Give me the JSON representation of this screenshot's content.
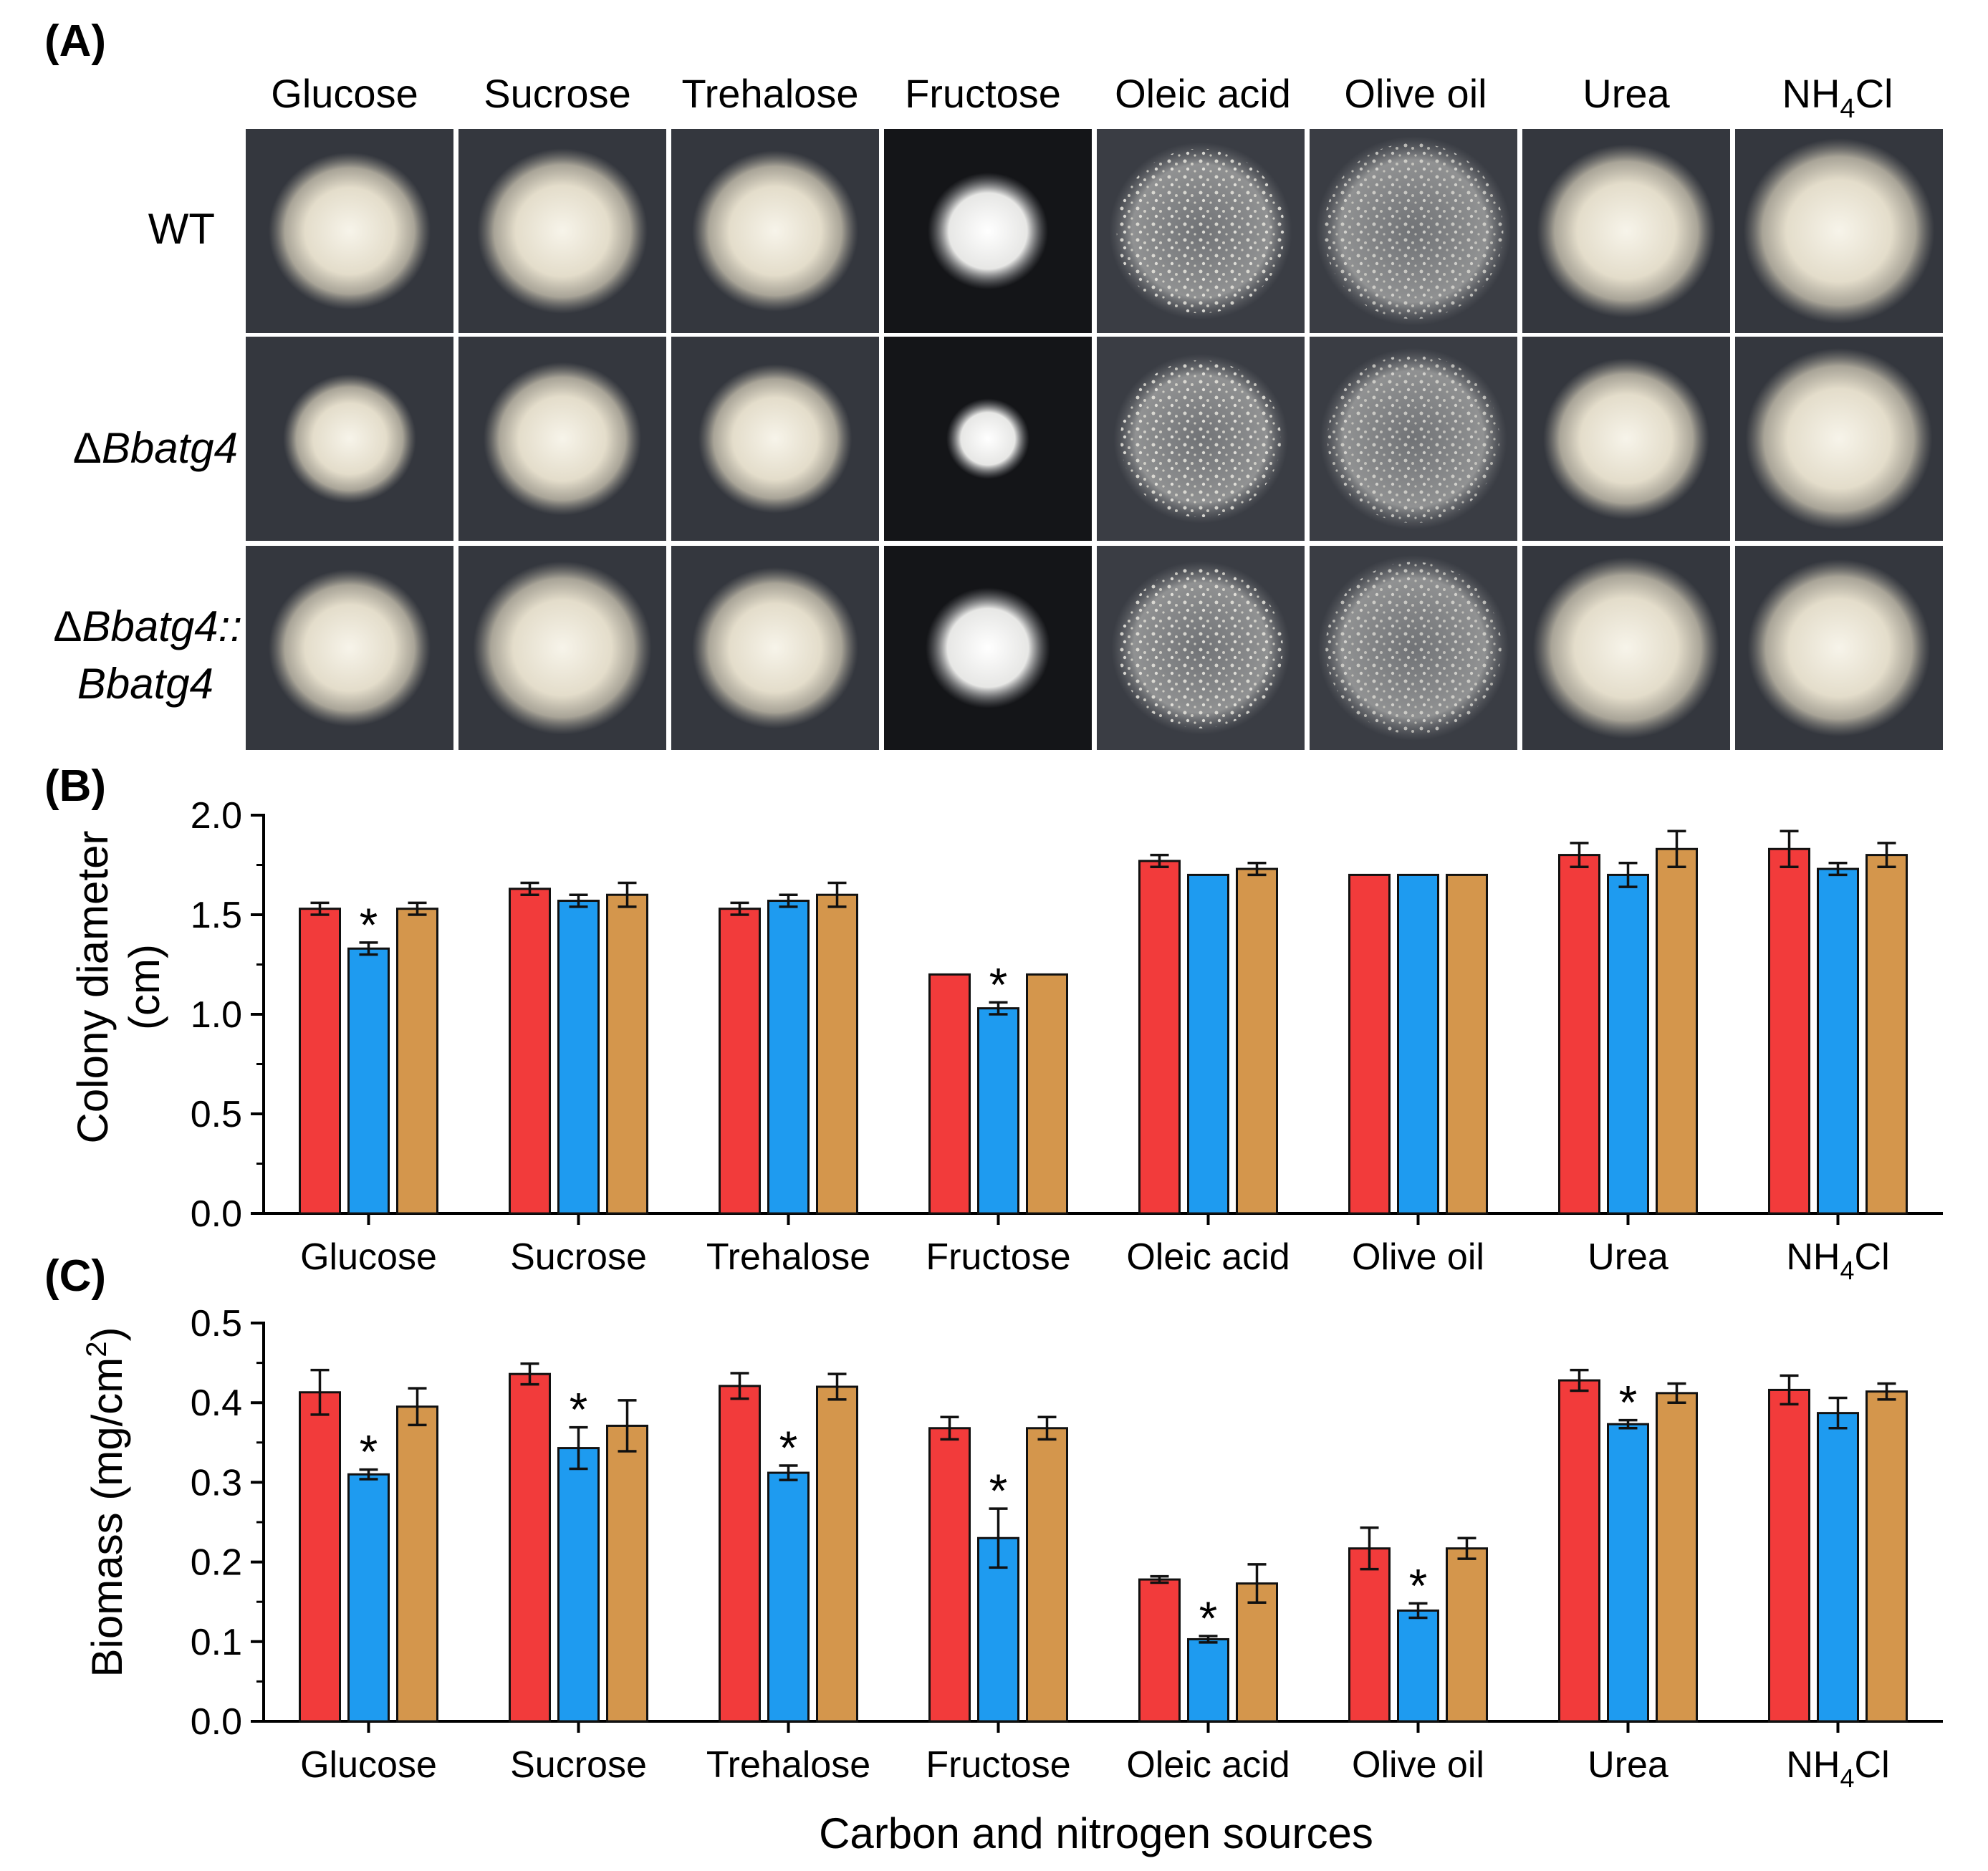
{
  "panels": {
    "a_label": "(A)",
    "b_label": "(B)",
    "c_label": "(C)"
  },
  "photo_grid": {
    "columns": [
      "Glucose",
      "Sucrose",
      "Trehalose",
      "Fructose",
      "Oleic acid",
      "Olive oil",
      "Urea",
      "NH4Cl"
    ],
    "nh4cl_parts": {
      "pre": "NH",
      "sub": "4",
      "post": "Cl"
    },
    "rows": [
      {
        "delta": "",
        "line1": "WT",
        "line2": ""
      },
      {
        "delta": "Δ",
        "line1": "Bbatg4",
        "line2": ""
      },
      {
        "delta": "Δ",
        "line1": "Bbatg4::",
        "line2": "Bbatg4"
      }
    ],
    "colony_sizes": [
      [
        0.78,
        0.82,
        0.8,
        0.58,
        0.88,
        0.94,
        0.86,
        0.92
      ],
      [
        0.64,
        0.76,
        0.74,
        0.4,
        0.84,
        0.9,
        0.8,
        0.9
      ],
      [
        0.78,
        0.86,
        0.8,
        0.6,
        0.86,
        0.92,
        0.9,
        0.88
      ]
    ]
  },
  "chart_data": [
    {
      "type": "bar",
      "panel": "B",
      "categories": [
        "Glucose",
        "Sucrose",
        "Trehalose",
        "Fructose",
        "Oleic acid",
        "Olive oil",
        "Urea",
        "NH4Cl"
      ],
      "ylabel_line1": "Colony diameter",
      "ylabel_line2": "(cm)",
      "xlabel": "",
      "ylim": [
        0,
        2.0
      ],
      "yticks": [
        "0.0",
        "0.5",
        "1.0",
        "1.5",
        "2.0"
      ],
      "series": [
        {
          "name": "WT",
          "color": "#f23b3b",
          "values": [
            1.53,
            1.63,
            1.53,
            1.2,
            1.77,
            1.7,
            1.8,
            1.83
          ],
          "errors": [
            0.03,
            0.03,
            0.03,
            0.0,
            0.03,
            0.0,
            0.06,
            0.09
          ]
        },
        {
          "name": "ΔBbatg4",
          "color": "#1e9bf0",
          "values": [
            1.33,
            1.57,
            1.57,
            1.03,
            1.7,
            1.7,
            1.7,
            1.73
          ],
          "errors": [
            0.03,
            0.03,
            0.03,
            0.03,
            0.0,
            0.0,
            0.06,
            0.03
          ]
        },
        {
          "name": "ΔBbatg4::Bbatg4",
          "color": "#d4964c",
          "values": [
            1.53,
            1.6,
            1.6,
            1.2,
            1.73,
            1.7,
            1.83,
            1.8
          ],
          "errors": [
            0.03,
            0.06,
            0.06,
            0.0,
            0.03,
            0.0,
            0.09,
            0.06
          ]
        }
      ],
      "significance": [
        {
          "category": 0,
          "series": 1,
          "mark": "*"
        },
        {
          "category": 3,
          "series": 1,
          "mark": "*"
        }
      ]
    },
    {
      "type": "bar",
      "panel": "C",
      "categories": [
        "Glucose",
        "Sucrose",
        "Trehalose",
        "Fructose",
        "Oleic acid",
        "Olive oil",
        "Urea",
        "NH4Cl"
      ],
      "ylabel_pre": "Biomass  (mg/cm",
      "ylabel_sup": "2",
      "ylabel_post": ")",
      "xlabel": "Carbon and nitrogen sources",
      "ylim": [
        0,
        0.5
      ],
      "yticks": [
        "0.0",
        "0.1",
        "0.2",
        "0.3",
        "0.4",
        "0.5"
      ],
      "series": [
        {
          "name": "WT",
          "color": "#f23b3b",
          "values": [
            0.413,
            0.436,
            0.421,
            0.368,
            0.178,
            0.217,
            0.428,
            0.416
          ],
          "errors": [
            0.028,
            0.013,
            0.016,
            0.014,
            0.004,
            0.026,
            0.013,
            0.018
          ]
        },
        {
          "name": "ΔBbatg4",
          "color": "#1e9bf0",
          "values": [
            0.31,
            0.343,
            0.312,
            0.23,
            0.103,
            0.139,
            0.373,
            0.387
          ],
          "errors": [
            0.006,
            0.026,
            0.009,
            0.037,
            0.004,
            0.009,
            0.005,
            0.019
          ]
        },
        {
          "name": "ΔBbatg4::Bbatg4",
          "color": "#d4964c",
          "values": [
            0.395,
            0.371,
            0.42,
            0.368,
            0.173,
            0.217,
            0.412,
            0.414
          ],
          "errors": [
            0.023,
            0.032,
            0.016,
            0.014,
            0.024,
            0.013,
            0.012,
            0.01
          ]
        }
      ],
      "significance": [
        {
          "category": 0,
          "series": 1,
          "mark": "*"
        },
        {
          "category": 1,
          "series": 1,
          "mark": "*"
        },
        {
          "category": 2,
          "series": 1,
          "mark": "*"
        },
        {
          "category": 3,
          "series": 1,
          "mark": "*"
        },
        {
          "category": 4,
          "series": 1,
          "mark": "*"
        },
        {
          "category": 5,
          "series": 1,
          "mark": "*"
        },
        {
          "category": 6,
          "series": 1,
          "mark": "*"
        }
      ]
    }
  ]
}
